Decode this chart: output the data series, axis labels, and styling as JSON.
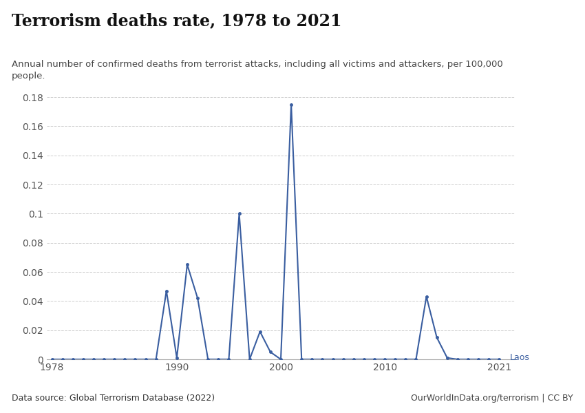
{
  "title": "Terrorism deaths rate, 1978 to 2021",
  "subtitle": "Annual number of confirmed deaths from terrorist attacks, including all victims and attackers, per 100,000\npeople.",
  "line_color": "#3a5ea0",
  "line_label": "Laos",
  "data_source": "Data source: Global Terrorism Database (2022)",
  "credit": "OurWorldInData.org/terrorism | CC BY",
  "owid_box_color": "#1a2e5a",
  "owid_red": "#c0392b",
  "years": [
    1978,
    1979,
    1980,
    1981,
    1982,
    1983,
    1984,
    1985,
    1986,
    1987,
    1988,
    1989,
    1990,
    1991,
    1992,
    1993,
    1994,
    1995,
    1996,
    1997,
    1998,
    1999,
    2000,
    2001,
    2002,
    2003,
    2004,
    2005,
    2006,
    2007,
    2008,
    2009,
    2010,
    2011,
    2012,
    2013,
    2014,
    2015,
    2016,
    2017,
    2018,
    2019,
    2020,
    2021
  ],
  "values": [
    0,
    0,
    0,
    0,
    0,
    0,
    0,
    0,
    0,
    0,
    0,
    0.047,
    0.001,
    0.065,
    0.042,
    0.0,
    0.0,
    0.0,
    0.1,
    0.0,
    0.019,
    0.005,
    0.0,
    0.175,
    0.0,
    0.0,
    0.0,
    0.0,
    0.0,
    0.0,
    0.0,
    0.0,
    0.0,
    0.0,
    0.0,
    0.0,
    0.043,
    0.015,
    0.001,
    0.0,
    0.0,
    0.0,
    0.0,
    0.0
  ],
  "xlim": [
    1977.5,
    2022.5
  ],
  "ylim": [
    0,
    0.19
  ],
  "ytick_vals": [
    0,
    0.02,
    0.04,
    0.06,
    0.08,
    0.1,
    0.12,
    0.14,
    0.16,
    0.18
  ],
  "ytick_labels": [
    "0",
    "0.02",
    "0.04",
    "0.06",
    "0.08",
    "0.1",
    "0.12",
    "0.14",
    "0.16",
    "0.18"
  ],
  "xticks": [
    1978,
    1990,
    2000,
    2010,
    2021
  ],
  "background_color": "#ffffff",
  "grid_color": "#cccccc"
}
